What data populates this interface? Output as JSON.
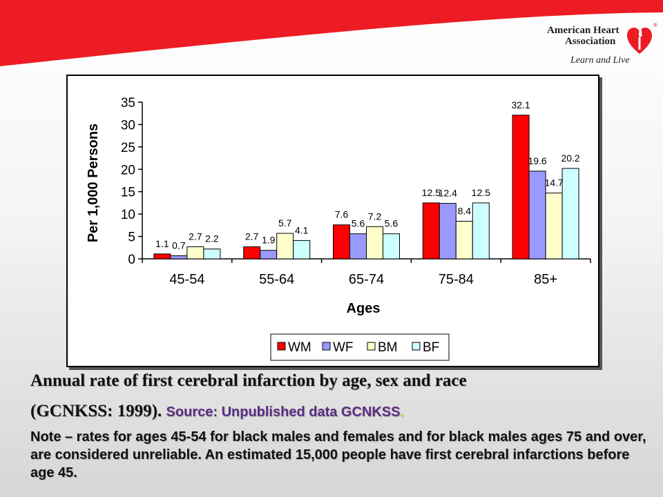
{
  "brand": {
    "line1": "American Heart",
    "line2": "Association",
    "tagline": "Learn and Live",
    "registered": "®",
    "banner_color": "#ed1c24",
    "icon": "heart-torch-icon"
  },
  "chart_data": {
    "type": "bar",
    "categories": [
      "45-54",
      "55-64",
      "65-74",
      "75-84",
      "85+"
    ],
    "series": [
      {
        "name": "WM",
        "color": "#ff0000",
        "values": [
          1.1,
          2.7,
          7.6,
          12.5,
          32.1
        ]
      },
      {
        "name": "WF",
        "color": "#9999ff",
        "values": [
          0.7,
          1.9,
          5.6,
          12.4,
          19.6
        ]
      },
      {
        "name": "BM",
        "color": "#ffffcc",
        "values": [
          2.7,
          5.7,
          7.2,
          8.4,
          14.7
        ]
      },
      {
        "name": "BF",
        "color": "#ccffff",
        "values": [
          2.2,
          4.1,
          5.6,
          12.5,
          20.2
        ]
      }
    ],
    "data_labels": [
      [
        "1.1",
        "2.7",
        "7.6",
        "12.5",
        "32.1"
      ],
      [
        "0.7",
        "1.9",
        "5.6",
        "12.4",
        "19.6"
      ],
      [
        "2.7",
        "5.7",
        "7.2",
        "8.4",
        "14.7"
      ],
      [
        "2.2",
        "4.1",
        "5.6",
        "12.5",
        "20.2"
      ]
    ],
    "xlabel": "Ages",
    "ylabel": "Per 1,000 Persons",
    "ylim": [
      0,
      35
    ],
    "yticks": [
      0,
      5,
      10,
      15,
      20,
      25,
      30,
      35
    ],
    "grid": false,
    "legend_position": "bottom"
  },
  "caption": {
    "title_line1": "Annual rate of first cerebral infarction by age, sex and race",
    "title_line2": "(GCNKSS: 1999).",
    "source": "Source: Unpublished data GCNKSS",
    "source_dot": ".",
    "note": "Note – rates for ages 45-54 for black males and females and for black males ages 75 and over, are considered unreliable. An estimated 15,000 people have first cerebral infarctions before age 45."
  }
}
